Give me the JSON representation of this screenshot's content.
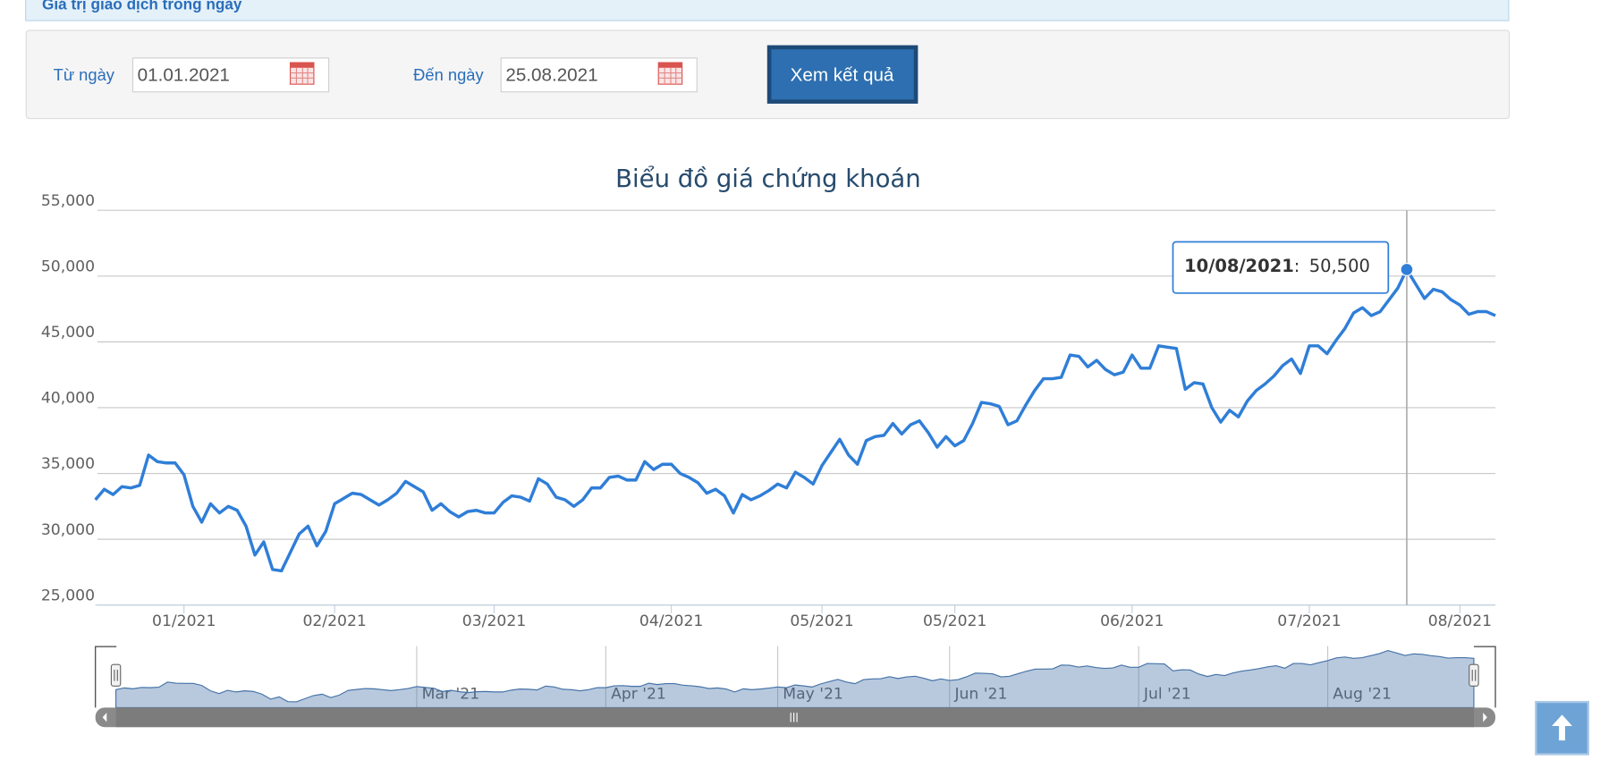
{
  "header": {
    "title": "Giá trị giao dịch trong ngày"
  },
  "form": {
    "from_label": "Từ ngày",
    "from_value": "01.01.2021",
    "to_label": "Đến ngày",
    "to_value": "25.08.2021",
    "submit": "Xem kết quả"
  },
  "chart_data": {
    "type": "line",
    "title": "Biểu đồ giá chứng khoán",
    "color": "#2f7ed8",
    "values": [
      33000,
      33800,
      33400,
      34000,
      33900,
      34100,
      36400,
      35900,
      35800,
      35800,
      34900,
      32500,
      31300,
      32700,
      32000,
      32500,
      32200,
      31000,
      28800,
      29800,
      27700,
      27600,
      29000,
      30400,
      31000,
      29500,
      30600,
      32700,
      33100,
      33500,
      33400,
      33000,
      32600,
      33000,
      33500,
      34400,
      34000,
      33600,
      32200,
      32700,
      32100,
      31700,
      32100,
      32200,
      32000,
      32000,
      32800,
      33300,
      33200,
      32900,
      34600,
      34200,
      33200,
      33000,
      32500,
      33000,
      33900,
      33900,
      34700,
      34800,
      34500,
      34500,
      35900,
      35300,
      35700,
      35700,
      35000,
      34700,
      34300,
      33500,
      33800,
      33300,
      32000,
      33400,
      33000,
      33300,
      33700,
      34200,
      33900,
      35100,
      34700,
      34200,
      35600,
      36600,
      37600,
      36400,
      35700,
      37500,
      37800,
      37900,
      38800,
      38000,
      38700,
      39000,
      38100,
      37000,
      37800,
      37100,
      37500,
      38800,
      40400,
      40300,
      40100,
      38700,
      39000,
      40200,
      41300,
      42200,
      42200,
      42300,
      44000,
      43900,
      43100,
      43600,
      42900,
      42500,
      42700,
      44000,
      43000,
      43000,
      44700,
      44600,
      44500,
      41400,
      41900,
      41800,
      40000,
      38900,
      39800,
      39300,
      40500,
      41300,
      41800,
      42400,
      43200,
      43700,
      42600,
      44700,
      44700,
      44100,
      45100,
      46000,
      47200,
      47600,
      47000,
      47300,
      48200,
      49100,
      50500,
      49400,
      48300,
      49000,
      48800,
      48200,
      47800,
      47100,
      47300,
      47300,
      47000
    ],
    "xlim": [
      0,
      158
    ],
    "xticks": [
      {
        "value": 10,
        "label": "01/2021"
      },
      {
        "value": 27,
        "label": "02/2021"
      },
      {
        "value": 45,
        "label": "03/2021"
      },
      {
        "value": 65,
        "label": "04/2021"
      },
      {
        "value": 82,
        "label": "05/2021"
      },
      {
        "value": 97,
        "label": "05/2021"
      },
      {
        "value": 117,
        "label": "06/2021"
      },
      {
        "value": 137,
        "label": "07/2021"
      },
      {
        "value": 154,
        "label": "08/2021"
      }
    ],
    "ylim": [
      25000,
      55000
    ],
    "yticks": [
      {
        "value": 25000,
        "label": "25,000"
      },
      {
        "value": 30000,
        "label": "30,000"
      },
      {
        "value": 35000,
        "label": "35,000"
      },
      {
        "value": 40000,
        "label": "40,000"
      },
      {
        "value": 45000,
        "label": "45,000"
      },
      {
        "value": 50000,
        "label": "50,000"
      },
      {
        "value": 55000,
        "label": "55,000"
      }
    ],
    "grid": true,
    "tooltip": {
      "x_label": "10/08/2021",
      "separator": ":",
      "value": 50500,
      "value_label": "50,500"
    },
    "navigator": {
      "xticks": [
        {
          "value": 35,
          "label": "Mar '21"
        },
        {
          "value": 57,
          "label": "Apr '21"
        },
        {
          "value": 77,
          "label": "May '21"
        },
        {
          "value": 97,
          "label": "Jun '21"
        },
        {
          "value": 119,
          "label": "Jul '21"
        },
        {
          "value": 141,
          "label": "Aug '21"
        }
      ]
    }
  }
}
